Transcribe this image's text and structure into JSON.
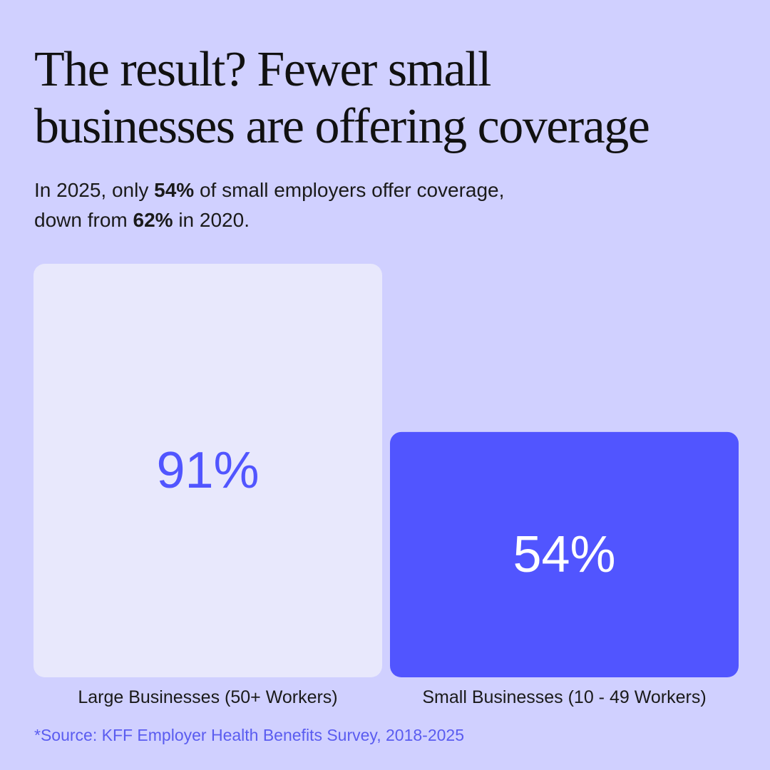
{
  "title_lines": [
    "The result? Fewer small",
    "businesses are offering coverage"
  ],
  "subtitle": {
    "line1_pre": "In 2025, only ",
    "line1_bold": "54%",
    "line1_post": " of small employers offer coverage,",
    "line2_pre": "down from ",
    "line2_bold": "62%",
    "line2_post": " in 2020."
  },
  "source": "*Source: KFF Employer Health Benefits Survey, 2018-2025",
  "colors": {
    "background": "#d0d0ff",
    "large_bar": "#e8e8fc",
    "small_bar": "#5155ff",
    "large_value_text": "#5155ff",
    "small_value_text": "#ffffff",
    "source_text": "#5a5cf0"
  },
  "chart_data": {
    "type": "bar",
    "categories": [
      "Large Businesses (50+ Workers)",
      "Small Businesses (10 - 49 Workers)"
    ],
    "values": [
      91,
      54
    ],
    "value_labels": [
      "91%",
      "54%"
    ],
    "title": "",
    "xlabel": "",
    "ylabel": "",
    "ylim": [
      0,
      91
    ],
    "grid": false,
    "legend": "none"
  }
}
